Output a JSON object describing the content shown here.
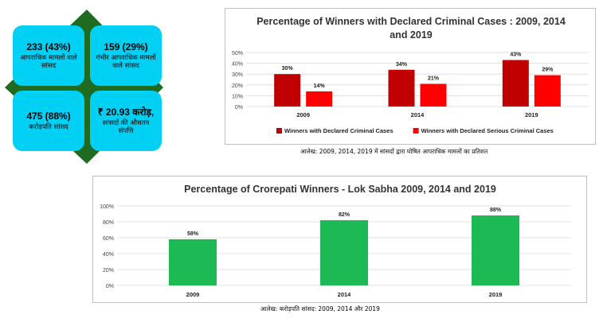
{
  "tiles": [
    {
      "value": "233 (43%)",
      "label": "आपराधिक मामलों वाले सांसद"
    },
    {
      "value": "159 (29%)",
      "label": "गंभीर आपराधिक मामलों वाले सांसद"
    },
    {
      "value": "475 (88%)",
      "label": "करोड़पति सांसद"
    },
    {
      "value": "₹ 20.93 करोड़,",
      "label": "सांसदों की औसतन संपत्ति"
    }
  ],
  "captions": {
    "chart1": "आलेख: 2009, 2014, 2019 में सांसदों द्वारा घोषित आपराधिक मामलों का प्रतिशत",
    "chart2": "आलेख: करोड़पति सांसद: 2009, 2014 और 2019"
  },
  "colors": {
    "tile": "#00d0f4",
    "diamond": "#1f6b1f",
    "series_dark_red": "#c00000",
    "series_red": "#ff0000",
    "bar_green": "#1db954"
  },
  "chart_data": [
    {
      "type": "bar",
      "title": "Percentage of Winners with Declared Criminal Cases : 2009, 2014 and 2019",
      "title_lines": [
        "Percentage of Winners with Declared Criminal Cases : 2009, 2014",
        "and 2019"
      ],
      "categories": [
        "2009",
        "2014",
        "2019"
      ],
      "series": [
        {
          "name": "Winners with Declared Criminal Cases",
          "values": [
            30,
            34,
            43
          ],
          "labels": [
            "30%",
            "34%",
            "43%"
          ]
        },
        {
          "name": "Winners with Declared Serious Criminal Cases",
          "values": [
            14,
            21,
            29
          ],
          "labels": [
            "14%",
            "21%",
            "29%"
          ]
        }
      ],
      "ylim": [
        0,
        50
      ],
      "yticks": [
        "0%",
        "10%",
        "20%",
        "30%",
        "40%",
        "50%"
      ],
      "grid": true,
      "legend": "bottom"
    },
    {
      "type": "bar",
      "title": "Percentage of Crorepati Winners - Lok Sabha 2009, 2014 and 2019",
      "categories": [
        "2009",
        "2014",
        "2019"
      ],
      "series": [
        {
          "values": [
            58,
            82,
            88
          ],
          "labels": [
            "58%",
            "82%",
            "88%"
          ]
        }
      ],
      "ylim": [
        0,
        100
      ],
      "yticks": [
        "0%",
        "20%",
        "40%",
        "60%",
        "80%",
        "100%"
      ],
      "grid": true
    }
  ]
}
